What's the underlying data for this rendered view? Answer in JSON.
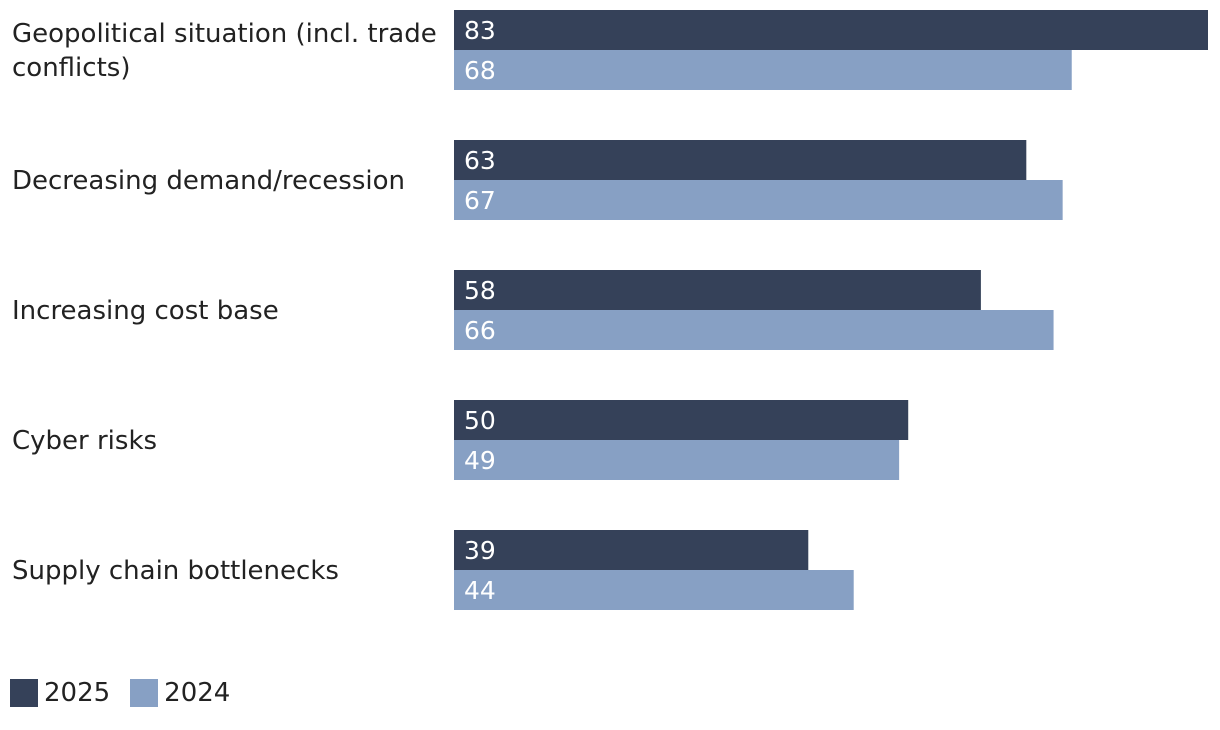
{
  "chart_data": {
    "type": "bar",
    "orientation": "horizontal",
    "categories": [
      [
        "Geopolitical situation (incl. trade",
        "conflicts)"
      ],
      [
        "Decreasing demand/recession"
      ],
      [
        "Increasing cost base"
      ],
      [
        "Cyber risks"
      ],
      [
        "Supply chain bottlenecks"
      ]
    ],
    "series": [
      {
        "name": "2025",
        "color": "#354159",
        "values": [
          83,
          63,
          58,
          50,
          39
        ]
      },
      {
        "name": "2024",
        "color": "#87a0c4",
        "values": [
          68,
          67,
          66,
          49,
          44
        ]
      }
    ],
    "xlim": [
      0,
      83
    ],
    "legend_position": "bottom-left",
    "grid": false,
    "title": "",
    "xlabel": "",
    "ylabel": ""
  }
}
